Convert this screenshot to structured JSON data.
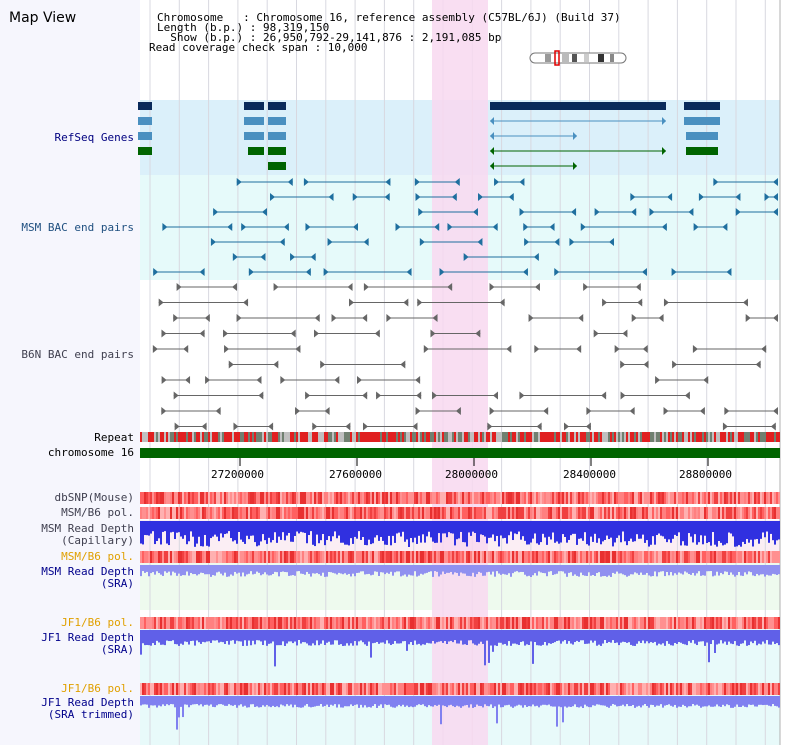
{
  "title": "Map View",
  "info": {
    "line1": "Chromosome   : Chromosome 16, reference assembly (C57BL/6J) (Build 37)",
    "line2": "Length (b.p.) : 98,319,150",
    "line3": "  Show (b.p.) : 26,950,792-29,141,876 : 2,191,085 bp",
    "line4": "Read coverage check span : 10,000"
  },
  "tracks": {
    "refseq": "RefSeq Genes",
    "msm_bac": "MSM BAC end pairs",
    "b6n_bac": "B6N BAC end pairs",
    "repeat": "Repeat",
    "chromosome": "chromosome 16",
    "dbsnp": "dbSNP(Mouse)",
    "msm_b6_pol": "MSM/B6 pol.",
    "msm_read_depth": "MSM Read Depth",
    "msm_read_depth_cap": "(Capillary)",
    "msm_b6_pol2": "MSM/B6 pol.",
    "msm_read_depth2": "MSM Read Depth",
    "msm_read_depth2_sub": "(SRA)",
    "jf1_b6_pol": "JF1/B6 pol.",
    "jf1_read_depth": "JF1 Read Depth",
    "jf1_read_depth_sub": "(SRA)",
    "jf1_b6_pol2": "JF1/B6 pol.",
    "jf1_read_depth2": "JF1 Read Depth",
    "jf1_read_depth2_sub": "(SRA trimmed)"
  },
  "axis_ticks": [
    "27200000",
    "27600000",
    "28000000",
    "28400000",
    "28800000"
  ],
  "colors": {
    "refseq_bg": "#dbf0fa",
    "bac_bg": "#e6fafa",
    "highlight": "#f8d8f0",
    "gene_blue": "#0a2a5a",
    "gene_mid": "#4a90c0",
    "gene_green": "#006400",
    "msm_bac": "#1f6f9f",
    "b6n_bac": "#666666",
    "chromosome_bar": "#006400",
    "depth_blue": "#3030e0"
  }
}
